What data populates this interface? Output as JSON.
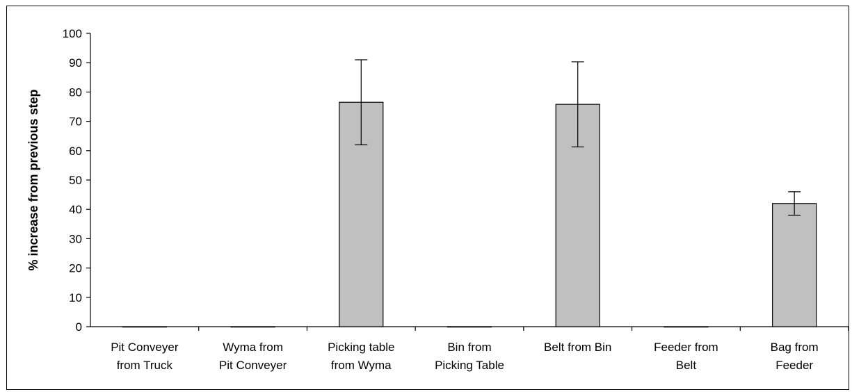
{
  "chart_data": {
    "type": "bar",
    "title": "",
    "xlabel": "",
    "ylabel": "% increase from previous step",
    "ylim": [
      0,
      100
    ],
    "yticks": [
      0,
      10,
      20,
      30,
      40,
      50,
      60,
      70,
      80,
      90,
      100
    ],
    "categories": [
      [
        "Pit Conveyer",
        "from Truck"
      ],
      [
        "Wyma from",
        "Pit Conveyer"
      ],
      [
        "Picking table",
        "from Wyma"
      ],
      [
        "Bin from",
        "Picking Table"
      ],
      [
        "Belt from Bin"
      ],
      [
        "Feeder from",
        "Belt"
      ],
      [
        "Bag from",
        "Feeder"
      ]
    ],
    "values": [
      0,
      0,
      76.5,
      0,
      75.8,
      0,
      42
    ],
    "error": [
      0,
      0,
      14.5,
      0,
      14.5,
      0,
      4
    ],
    "grid": false,
    "legend": "none",
    "bar_color": "#c0c0c0",
    "bar_edge_color": "#000000"
  }
}
